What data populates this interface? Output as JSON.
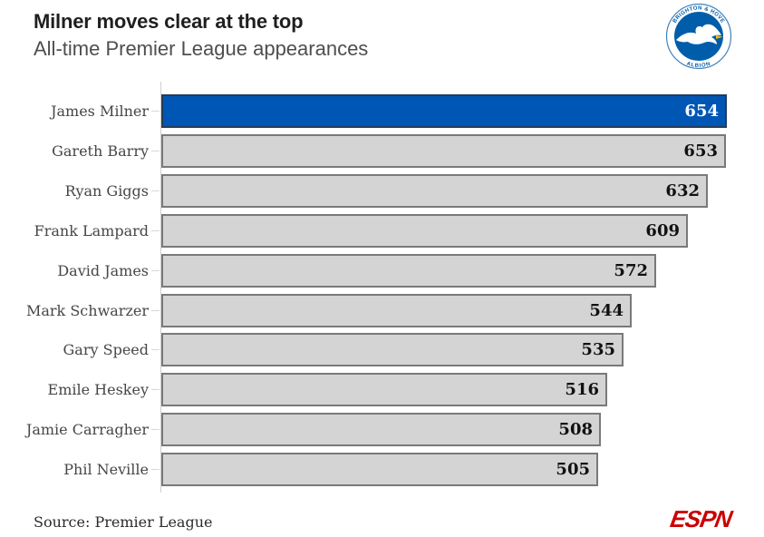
{
  "header": {
    "title": "Milner moves clear at the top",
    "subtitle": "All-time Premier League appearances"
  },
  "crest": {
    "club": "Brighton & Hove Albion",
    "text_top": "BRIGHTON & HOVE",
    "text_bottom": "ALBION",
    "blue": "#005daa",
    "beak_yellow": "#f0b323"
  },
  "chart_data": {
    "type": "bar",
    "orientation": "horizontal",
    "title": "Milner moves clear at the top",
    "subtitle": "All-time Premier League appearances",
    "categories": [
      "James Milner",
      "Gareth Barry",
      "Ryan Giggs",
      "Frank Lampard",
      "David James",
      "Mark Schwarzer",
      "Gary Speed",
      "Emile Heskey",
      "Jamie Carragher",
      "Phil Neville"
    ],
    "values": [
      654,
      653,
      632,
      609,
      572,
      544,
      535,
      516,
      508,
      505
    ],
    "xlim": [
      0,
      654
    ],
    "grid": false,
    "legend": false,
    "value_labels": "inside-end",
    "highlight_index": 0,
    "colors": {
      "highlight_fill": "#0056b4",
      "highlight_edge": "#253c57",
      "bar_fill": "#d4d4d4",
      "bar_edge": "#797979",
      "value_on_highlight": "#ffffff",
      "value_on_bar": "#111111",
      "axis": "#cfcfcf"
    }
  },
  "footer": {
    "source": "Source: Premier League",
    "brand": "ESPN",
    "brand_color": "#cc0000"
  }
}
